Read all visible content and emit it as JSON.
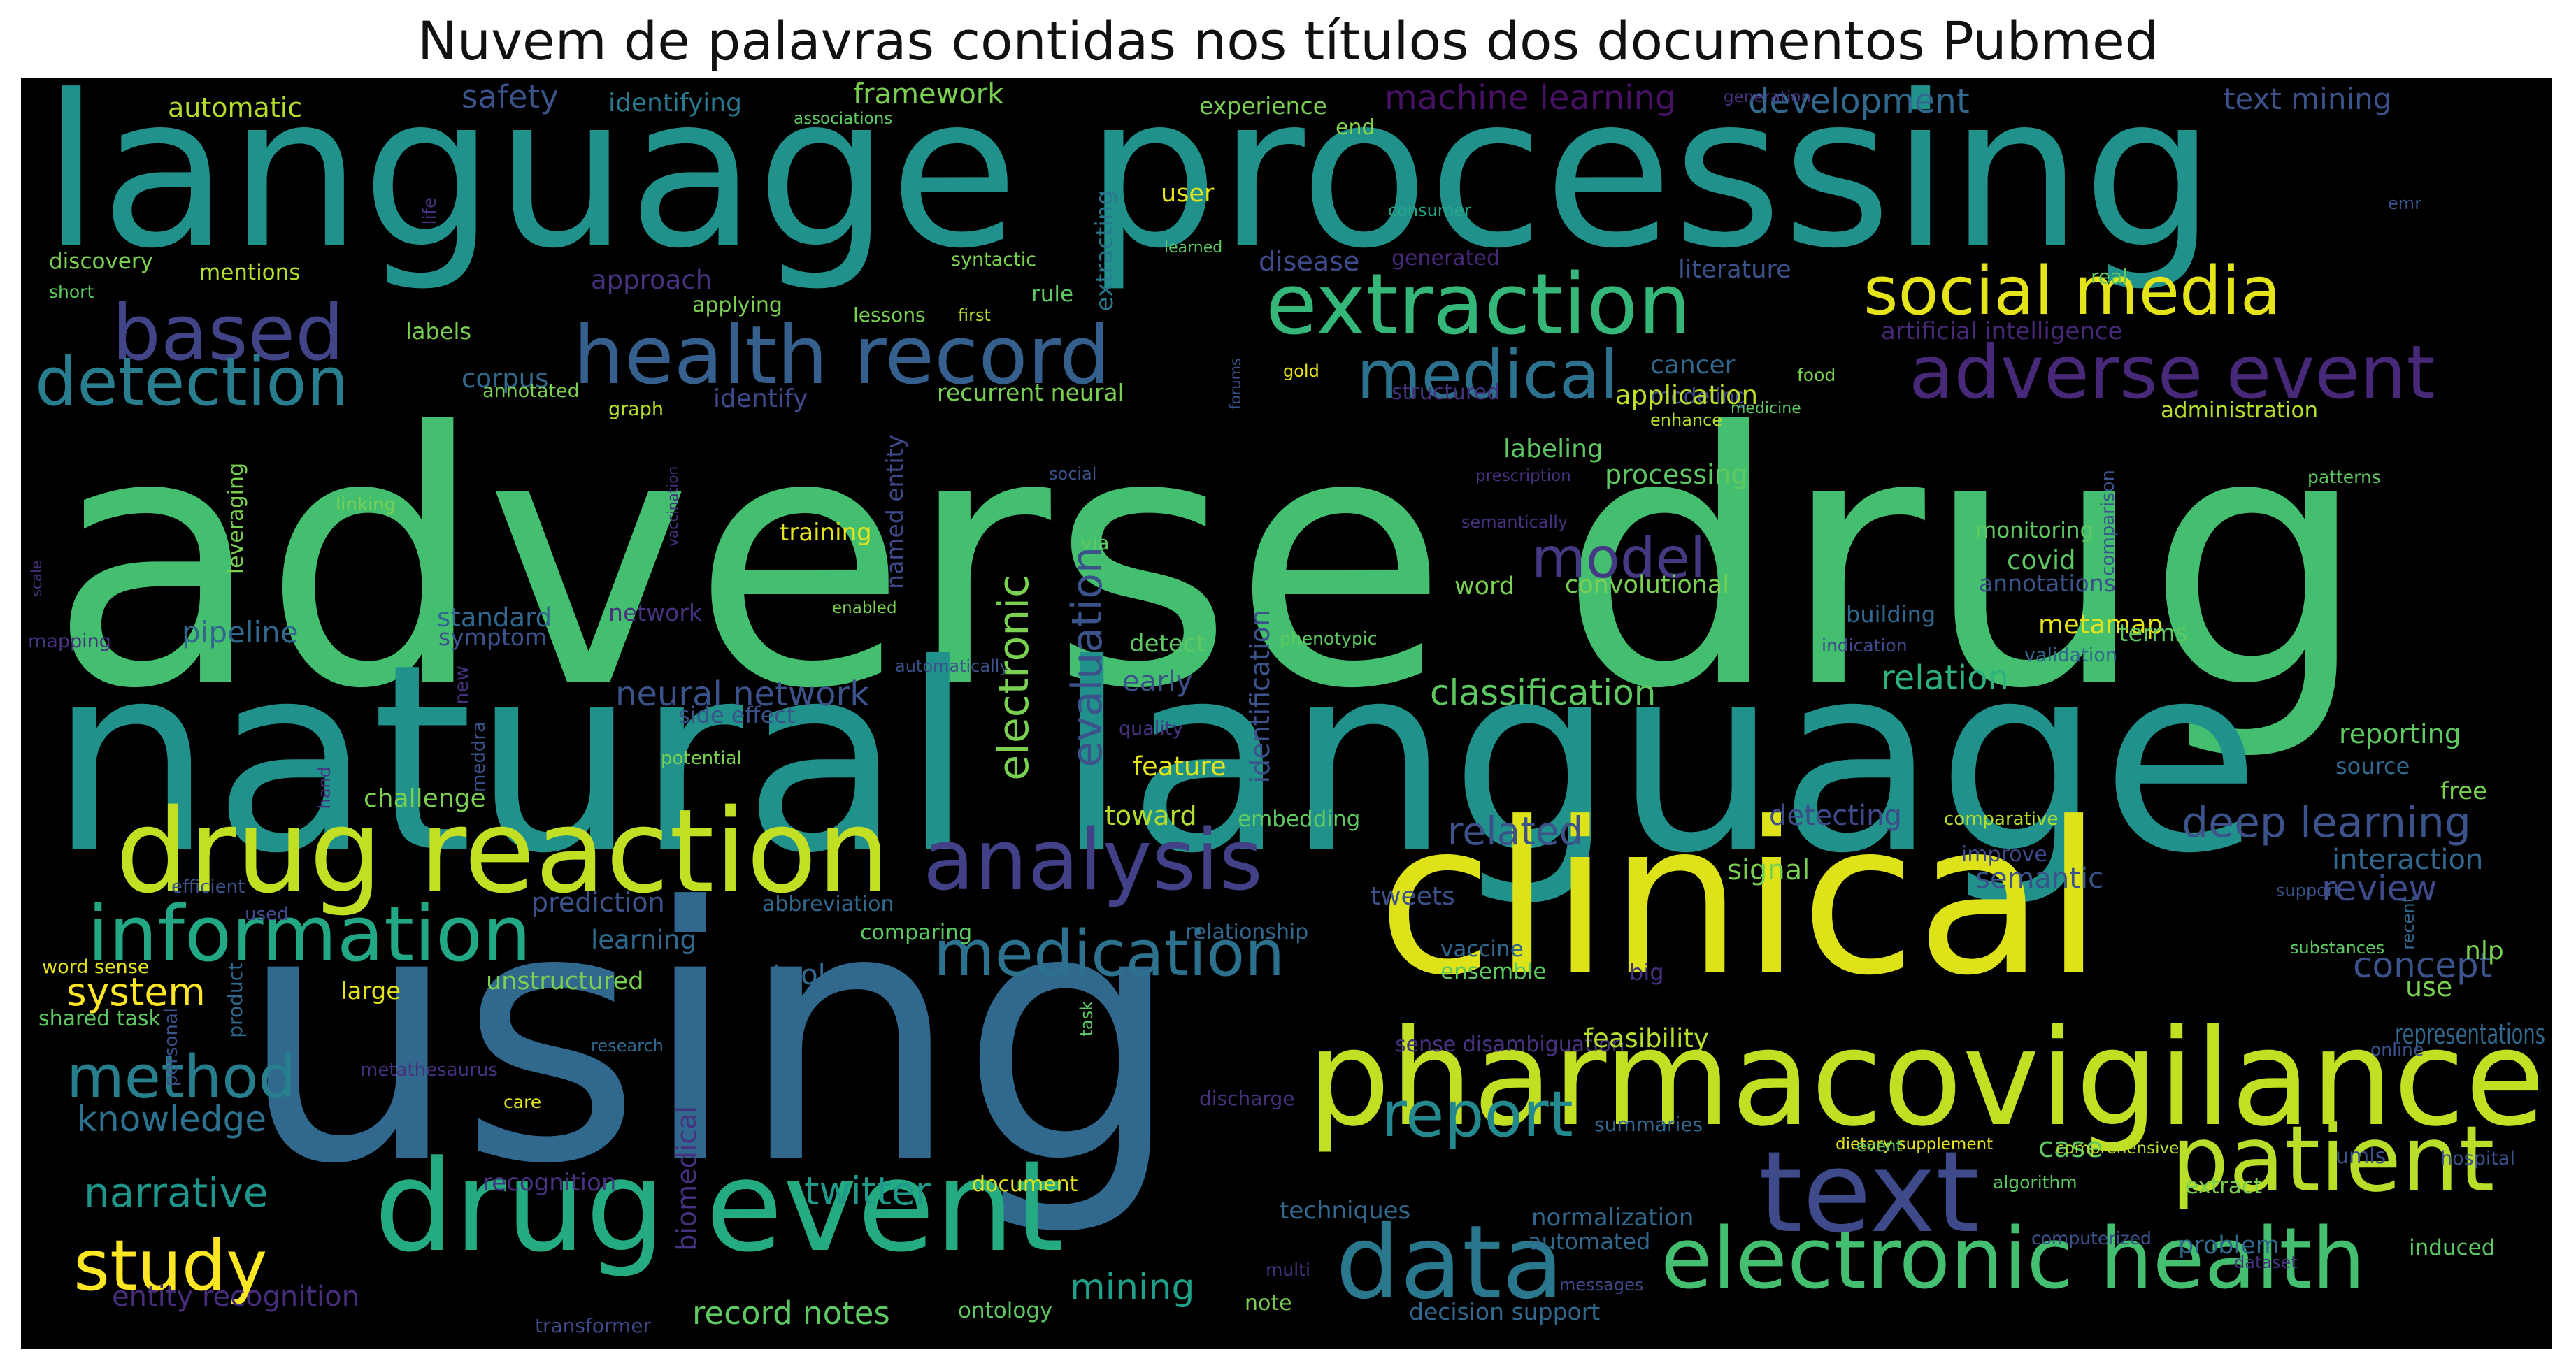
{
  "title": "Nuvem de palavras contidas nos títulos dos documentos Pubmed",
  "words": [
    {
      "t": "adverse drug",
      "c": "#44bf70"
    },
    {
      "t": "language processing",
      "c": "#21918c"
    },
    {
      "t": "natural language",
      "c": "#21918c"
    },
    {
      "t": "using",
      "c": "#31688e"
    },
    {
      "t": "clinical",
      "c": "#dde318"
    },
    {
      "t": "pharmacovigilance",
      "c": "#c2df23"
    },
    {
      "t": "drug reaction",
      "c": "#c2df23"
    },
    {
      "t": "drug event",
      "c": "#25ab82"
    },
    {
      "t": "electronic health",
      "c": "#44bf70"
    },
    {
      "t": "text",
      "c": "#3e4a89"
    },
    {
      "t": "data",
      "c": "#2a788e"
    },
    {
      "t": "patient",
      "c": "#b8de29"
    },
    {
      "t": "analysis",
      "c": "#424086"
    },
    {
      "t": "information",
      "c": "#22a884"
    },
    {
      "t": "medication",
      "c": "#2c728e"
    },
    {
      "t": "extraction",
      "c": "#35b779"
    },
    {
      "t": "health record",
      "c": "#355f8d"
    },
    {
      "t": "adverse event",
      "c": "#482878"
    },
    {
      "t": "social media",
      "c": "#e5e419"
    },
    {
      "t": "based",
      "c": "#414487"
    },
    {
      "t": "detection",
      "c": "#287d8e"
    },
    {
      "t": "medical",
      "c": "#2c728e"
    },
    {
      "t": "model",
      "c": "#443983"
    },
    {
      "t": "report",
      "c": "#23898e"
    },
    {
      "t": "study",
      "c": "#fde725"
    },
    {
      "t": "method",
      "c": "#277f8e"
    },
    {
      "t": "deep learning",
      "c": "#3b528b"
    },
    {
      "t": "related",
      "c": "#3b528b"
    },
    {
      "t": "narrative",
      "c": "#1f968b"
    },
    {
      "t": "knowledge",
      "c": "#2c728e"
    },
    {
      "t": "system",
      "c": "#fde725"
    },
    {
      "t": "twitter",
      "c": "#1f9a8a"
    },
    {
      "t": "mining",
      "c": "#1fa088"
    },
    {
      "t": "record notes",
      "c": "#5ec962"
    },
    {
      "t": "entity recognition",
      "c": "#472d7b"
    },
    {
      "t": "review",
      "c": "#3e4a89"
    },
    {
      "t": "concept",
      "c": "#3b528b"
    },
    {
      "t": "classification",
      "c": "#5ec962"
    },
    {
      "t": "neural network",
      "c": "#3b528b"
    },
    {
      "t": "relation",
      "c": "#2db27d"
    },
    {
      "t": "semantic",
      "c": "#3b528b"
    },
    {
      "t": "machine learning",
      "c": "#471164"
    },
    {
      "t": "development",
      "c": "#31688e"
    },
    {
      "t": "text mining",
      "c": "#3b528b"
    },
    {
      "t": "framework",
      "c": "#7ad151"
    },
    {
      "t": "safety",
      "c": "#3b528b"
    },
    {
      "t": "automatic",
      "c": "#b5de2b"
    },
    {
      "t": "identifying",
      "c": "#2a788e"
    },
    {
      "t": "associations",
      "c": "#5ec962"
    },
    {
      "t": "experience",
      "c": "#7ad151"
    },
    {
      "t": "end",
      "c": "#86d549"
    },
    {
      "t": "user",
      "c": "#e5e419"
    },
    {
      "t": "extracting",
      "c": "#2a788e"
    },
    {
      "t": "generation",
      "c": "#46327e"
    },
    {
      "t": "consumer",
      "c": "#22a884"
    },
    {
      "t": "emr",
      "c": "#3b528b"
    },
    {
      "t": "discovery",
      "c": "#7ad151"
    },
    {
      "t": "mentions",
      "c": "#b5de2b"
    },
    {
      "t": "approach",
      "c": "#46327e"
    },
    {
      "t": "syntactic",
      "c": "#7ad151"
    },
    {
      "t": "short",
      "c": "#5ec962"
    },
    {
      "t": "applying",
      "c": "#7ad151"
    },
    {
      "t": "life",
      "c": "#46327e"
    },
    {
      "t": "lessons",
      "c": "#7ad151"
    },
    {
      "t": "first",
      "c": "#b5de2b"
    },
    {
      "t": "rule",
      "c": "#5ec962"
    },
    {
      "t": "learned",
      "c": "#5ec962"
    },
    {
      "t": "disease",
      "c": "#3e4a89"
    },
    {
      "t": "generated",
      "c": "#482878"
    },
    {
      "t": "literature",
      "c": "#3b528b"
    },
    {
      "t": "real",
      "c": "#5ec962"
    },
    {
      "t": "artificial intelligence",
      "c": "#482878"
    },
    {
      "t": "labels",
      "c": "#7ad151"
    },
    {
      "t": "corpus",
      "c": "#31688e"
    },
    {
      "t": "identify",
      "c": "#3e4a89"
    },
    {
      "t": "cancer",
      "c": "#31688e"
    },
    {
      "t": "modeling",
      "c": "#3e4a89"
    },
    {
      "t": "food",
      "c": "#7ad151"
    },
    {
      "t": "annotated",
      "c": "#7ad151"
    },
    {
      "t": "graph",
      "c": "#b5de2b"
    },
    {
      "t": "recurrent neural",
      "c": "#7ad151"
    },
    {
      "t": "gold",
      "c": "#e5e419"
    },
    {
      "t": "forums",
      "c": "#3b528b"
    },
    {
      "t": "structured",
      "c": "#46327e"
    },
    {
      "t": "application",
      "c": "#bddf26"
    },
    {
      "t": "enhance",
      "c": "#b5de2b"
    },
    {
      "t": "medicine",
      "c": "#5ec962"
    },
    {
      "t": "administration",
      "c": "#b5de2b"
    },
    {
      "t": "labeling",
      "c": "#5ec962"
    },
    {
      "t": "prescription",
      "c": "#46327e"
    },
    {
      "t": "processing",
      "c": "#5ec962"
    },
    {
      "t": "patterns",
      "c": "#5ec962"
    },
    {
      "t": "comparison",
      "c": "#3b528b"
    },
    {
      "t": "leveraging",
      "c": "#7ad151"
    },
    {
      "t": "linking",
      "c": "#7ad151"
    },
    {
      "t": "named entity",
      "c": "#3e4a89"
    },
    {
      "t": "social",
      "c": "#3b528b"
    },
    {
      "t": "semantically",
      "c": "#46327e"
    },
    {
      "t": "monitoring",
      "c": "#5ec962"
    },
    {
      "t": "training",
      "c": "#e5e419"
    },
    {
      "t": "via",
      "c": "#5ec962"
    },
    {
      "t": "scale",
      "c": "#46327e"
    },
    {
      "t": "vaccination",
      "c": "#46327e"
    },
    {
      "t": "covid",
      "c": "#5ec962"
    },
    {
      "t": "word",
      "c": "#7ad151"
    },
    {
      "t": "convolutional",
      "c": "#7ad151"
    },
    {
      "t": "annotations",
      "c": "#3b528b"
    },
    {
      "t": "enabled",
      "c": "#7ad151"
    },
    {
      "t": "building",
      "c": "#31688e"
    },
    {
      "t": "metamap",
      "c": "#e5e419"
    },
    {
      "t": "terms",
      "c": "#5ec962"
    },
    {
      "t": "pipeline",
      "c": "#31688e"
    },
    {
      "t": "standard",
      "c": "#31688e"
    },
    {
      "t": "mapping",
      "c": "#46327e"
    },
    {
      "t": "symptom",
      "c": "#3b528b"
    },
    {
      "t": "network",
      "c": "#46327e"
    },
    {
      "t": "detect",
      "c": "#5ec962"
    },
    {
      "t": "phenotypic",
      "c": "#5ec962"
    },
    {
      "t": "indication",
      "c": "#3e4a89"
    },
    {
      "t": "validation",
      "c": "#31688e"
    },
    {
      "t": "automatically",
      "c": "#3b528b"
    },
    {
      "t": "new",
      "c": "#46327e"
    },
    {
      "t": "early",
      "c": "#3b528b"
    },
    {
      "t": "identification",
      "c": "#3b528b"
    },
    {
      "t": "electronic",
      "c": "#7ad151"
    },
    {
      "t": "evaluation",
      "c": "#3b528b"
    },
    {
      "t": "side effect",
      "c": "#3b528b"
    },
    {
      "t": "quality",
      "c": "#46327e"
    },
    {
      "t": "reporting",
      "c": "#5ec962"
    },
    {
      "t": "source",
      "c": "#31688e"
    },
    {
      "t": "hand",
      "c": "#46327e"
    },
    {
      "t": "potential",
      "c": "#7ad151"
    },
    {
      "t": "meddra",
      "c": "#3b528b"
    },
    {
      "t": "feature",
      "c": "#e5e419"
    },
    {
      "t": "free",
      "c": "#7ad151"
    },
    {
      "t": "challenge",
      "c": "#7ad151"
    },
    {
      "t": "toward",
      "c": "#b5de2b"
    },
    {
      "t": "embedding",
      "c": "#5ec962"
    },
    {
      "t": "detecting",
      "c": "#3e4a89"
    },
    {
      "t": "comparative",
      "c": "#b5de2b"
    },
    {
      "t": "improve",
      "c": "#3e4a89"
    },
    {
      "t": "interaction",
      "c": "#31688e"
    },
    {
      "t": "signal",
      "c": "#7ad151"
    },
    {
      "t": "prediction",
      "c": "#3b528b"
    },
    {
      "t": "efficient",
      "c": "#3b528b"
    },
    {
      "t": "abbreviation",
      "c": "#31688e"
    },
    {
      "t": "tweets",
      "c": "#3b528b"
    },
    {
      "t": "support",
      "c": "#3b528b"
    },
    {
      "t": "recent",
      "c": "#31688e"
    },
    {
      "t": "used",
      "c": "#3e4a89"
    },
    {
      "t": "learning",
      "c": "#31688e"
    },
    {
      "t": "comparing",
      "c": "#5ec962"
    },
    {
      "t": "relationship",
      "c": "#31688e"
    },
    {
      "t": "vaccine",
      "c": "#31688e"
    },
    {
      "t": "substances",
      "c": "#5ec962"
    },
    {
      "t": "nlp",
      "c": "#7ad151"
    },
    {
      "t": "word sense",
      "c": "#e5e419"
    },
    {
      "t": "large",
      "c": "#e5e419"
    },
    {
      "t": "unstructured",
      "c": "#7ad151"
    },
    {
      "t": "tool",
      "c": "#31688e"
    },
    {
      "t": "ensemble",
      "c": "#5ec962"
    },
    {
      "t": "big",
      "c": "#46327e"
    },
    {
      "t": "use",
      "c": "#7ad151"
    },
    {
      "t": "shared task",
      "c": "#5ec962"
    },
    {
      "t": "personal",
      "c": "#3b528b"
    },
    {
      "t": "product",
      "c": "#31688e"
    },
    {
      "t": "research",
      "c": "#31688e"
    },
    {
      "t": "task",
      "c": "#5ec962"
    },
    {
      "t": "sense disambiguation",
      "c": "#46327e"
    },
    {
      "t": "feasibility",
      "c": "#b5de2b"
    },
    {
      "t": "representations",
      "c": "#31688e"
    },
    {
      "t": "online",
      "c": "#3b528b"
    },
    {
      "t": "metathesaurus",
      "c": "#46327e"
    },
    {
      "t": "care",
      "c": "#e5e419"
    },
    {
      "t": "discharge",
      "c": "#46327e"
    },
    {
      "t": "summaries",
      "c": "#31688e"
    },
    {
      "t": "dietary supplement",
      "c": "#e5e419"
    },
    {
      "t": "event",
      "c": "#5ec962"
    },
    {
      "t": "case",
      "c": "#5ec962"
    },
    {
      "t": "comprehensive",
      "c": "#b5de2b"
    },
    {
      "t": "umls",
      "c": "#3b528b"
    },
    {
      "t": "hospital",
      "c": "#3b528b"
    },
    {
      "t": "biomedical",
      "c": "#46327e"
    },
    {
      "t": "recognition",
      "c": "#46327e"
    },
    {
      "t": "document",
      "c": "#e5e419"
    },
    {
      "t": "extract",
      "c": "#7ad151"
    },
    {
      "t": "algorithm",
      "c": "#5ec962"
    },
    {
      "t": "techniques",
      "c": "#31688e"
    },
    {
      "t": "normalization",
      "c": "#31688e"
    },
    {
      "t": "computerized",
      "c": "#3b528b"
    },
    {
      "t": "problem",
      "c": "#31688e"
    },
    {
      "t": "induced",
      "c": "#5ec962"
    },
    {
      "t": "automated",
      "c": "#31688e"
    },
    {
      "t": "dataset",
      "c": "#46327e"
    },
    {
      "t": "multi",
      "c": "#46327e"
    },
    {
      "t": "messages",
      "c": "#3e4a89"
    },
    {
      "t": "note",
      "c": "#7ad151"
    },
    {
      "t": "decision support",
      "c": "#31688e"
    },
    {
      "t": "ontology",
      "c": "#5ec962"
    },
    {
      "t": "transformer",
      "c": "#3e4a89"
    }
  ]
}
